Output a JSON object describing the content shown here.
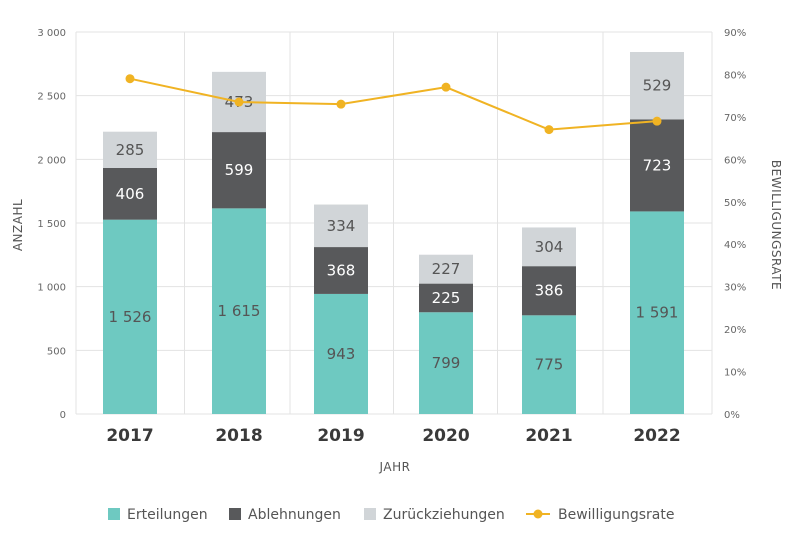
{
  "chart_data": {
    "type": "bar",
    "stacked": true,
    "categories": [
      "2017",
      "2018",
      "2019",
      "2020",
      "2021",
      "2022"
    ],
    "xlabel": "JAHR",
    "ylabel": "ANZAHL",
    "y2label": "BEWILLIGUNGSRATE",
    "ylim": [
      0,
      3000
    ],
    "y2lim": [
      0,
      90
    ],
    "yticks": [
      0,
      500,
      1000,
      1500,
      2000,
      2500,
      3000
    ],
    "ytick_labels": [
      "0",
      "500",
      "1 000",
      "1 500",
      "2 000",
      "2 500",
      "3 000"
    ],
    "y2ticks": [
      0,
      10,
      20,
      30,
      40,
      50,
      60,
      70,
      80,
      90
    ],
    "y2tick_labels": [
      "0%",
      "10%",
      "20%",
      "30%",
      "40%",
      "50%",
      "60%",
      "70%",
      "80%",
      "90%"
    ],
    "grid": true,
    "legend_position": "bottom",
    "series": [
      {
        "name": "Erteilungen",
        "color": "#6ec9c1",
        "label_color": "#555555",
        "values": [
          1526,
          1615,
          943,
          799,
          775,
          1591
        ],
        "labels": [
          "1 526",
          "1 615",
          "943",
          "799",
          "775",
          "1 591"
        ]
      },
      {
        "name": "Ablehnungen",
        "color": "#58595b",
        "label_color": "#ffffff",
        "values": [
          406,
          599,
          368,
          225,
          386,
          723
        ],
        "labels": [
          "406",
          "599",
          "368",
          "225",
          "386",
          "723"
        ]
      },
      {
        "name": "Zurückziehungen",
        "color": "#d1d5d8",
        "label_color": "#555555",
        "values": [
          285,
          473,
          334,
          227,
          304,
          529
        ],
        "labels": [
          "285",
          "473",
          "334",
          "227",
          "304",
          "529"
        ]
      }
    ],
    "line_series": {
      "name": "Bewilligungsrate",
      "axis": "right",
      "color": "#f0b323",
      "values": [
        79,
        73.5,
        73,
        77,
        67,
        69
      ]
    }
  }
}
